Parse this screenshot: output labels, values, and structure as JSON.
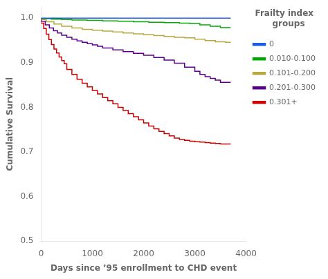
{
  "chart_data": {
    "type": "step",
    "xlabel": "Days since ’95 enrollment to CHD event",
    "ylabel": "Cumulative Survival",
    "legend_title": "Frailty index\n   groups",
    "xlim": [
      0,
      4000
    ],
    "ylim": [
      0.5,
      1.025
    ],
    "xticks": [
      0,
      1000,
      2000,
      3000,
      4000
    ],
    "yticks": [
      0.5,
      0.6,
      0.7,
      0.8,
      0.9,
      {
        "value": 1.0,
        "label": "1.0"
      }
    ],
    "grid": false,
    "legend": "right",
    "series": [
      {
        "name": "0",
        "color": "#1a5ce8",
        "x": [
          0,
          3700
        ],
        "values": [
          1.0,
          1.0
        ]
      },
      {
        "name": "0.010-0.100",
        "color": "#00aa00",
        "x": [
          0,
          200,
          400,
          600,
          900,
          1200,
          1500,
          1800,
          2100,
          2400,
          2700,
          2900,
          3100,
          3300,
          3500,
          3700
        ],
        "values": [
          1.0,
          0.999,
          0.998,
          0.997,
          0.996,
          0.995,
          0.994,
          0.993,
          0.992,
          0.991,
          0.99,
          0.989,
          0.988,
          0.985,
          0.982,
          0.979
        ]
      },
      {
        "name": "0.101-0.200",
        "color": "#b8a840",
        "x": [
          0,
          100,
          250,
          400,
          600,
          800,
          1000,
          1200,
          1400,
          1600,
          1800,
          2000,
          2200,
          2400,
          2600,
          2800,
          3000,
          3200,
          3400,
          3600,
          3700
        ],
        "values": [
          1.0,
          0.997,
          0.992,
          0.987,
          0.982,
          0.978,
          0.975,
          0.973,
          0.971,
          0.969,
          0.967,
          0.965,
          0.963,
          0.961,
          0.959,
          0.957,
          0.956,
          0.953,
          0.95,
          0.947,
          0.946
        ]
      },
      {
        "name": "0.201-0.300",
        "color": "#5b008a",
        "x": [
          0,
          80,
          160,
          240,
          320,
          400,
          500,
          600,
          700,
          800,
          900,
          1000,
          1100,
          1200,
          1400,
          1600,
          1800,
          2000,
          2200,
          2400,
          2600,
          2800,
          3000,
          3100,
          3200,
          3300,
          3400,
          3500,
          3700
        ],
        "values": [
          1.0,
          0.993,
          0.985,
          0.978,
          0.972,
          0.967,
          0.962,
          0.957,
          0.953,
          0.949,
          0.946,
          0.943,
          0.94,
          0.937,
          0.933,
          0.929,
          0.925,
          0.921,
          0.917,
          0.912,
          0.906,
          0.899,
          0.89,
          0.881,
          0.874,
          0.869,
          0.865,
          0.861,
          0.856
        ]
      },
      {
        "name": "0.301+",
        "color": "#cc0000",
        "x": [
          0,
          50,
          100,
          150,
          200,
          250,
          300,
          350,
          400,
          450,
          500,
          600,
          700,
          800,
          900,
          1000,
          1100,
          1200,
          1300,
          1400,
          1500,
          1600,
          1700,
          1800,
          1900,
          2000,
          2100,
          2200,
          2300,
          2400,
          2500,
          2600,
          2700,
          2800,
          2900,
          3000,
          3100,
          3200,
          3300,
          3400,
          3500,
          3700
        ],
        "values": [
          1.0,
          0.989,
          0.977,
          0.964,
          0.952,
          0.941,
          0.931,
          0.922,
          0.913,
          0.905,
          0.898,
          0.885,
          0.874,
          0.863,
          0.854,
          0.846,
          0.838,
          0.83,
          0.822,
          0.815,
          0.808,
          0.8,
          0.793,
          0.786,
          0.779,
          0.772,
          0.765,
          0.758,
          0.752,
          0.746,
          0.741,
          0.736,
          0.731,
          0.728,
          0.726,
          0.724,
          0.723,
          0.722,
          0.721,
          0.72,
          0.719,
          0.718
        ]
      }
    ]
  }
}
